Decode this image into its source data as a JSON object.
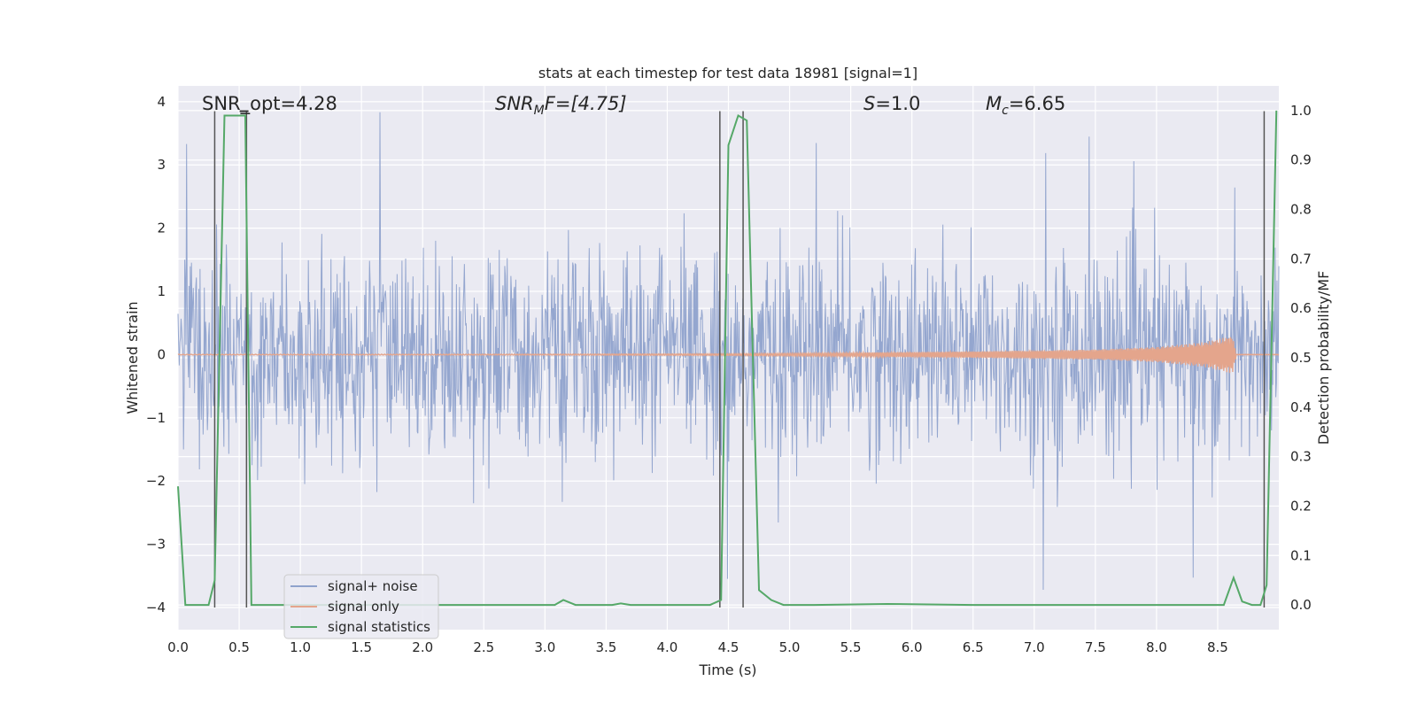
{
  "chart_data": {
    "type": "line",
    "title": "stats at each timestep for test data 18981 [signal=1]",
    "xlabel": "Time (s)",
    "ylabel_left": "Whitened strain",
    "ylabel_right": "Detection probability/MF",
    "xlim": [
      0.0,
      9.0
    ],
    "ylim_left": [
      -4.35,
      4.25
    ],
    "ylim_right": [
      -0.05,
      1.05
    ],
    "x_ticks": [
      "0.0",
      "0.5",
      "1.0",
      "1.5",
      "2.0",
      "2.5",
      "3.0",
      "3.5",
      "4.0",
      "4.5",
      "5.0",
      "5.5",
      "6.0",
      "6.5",
      "7.0",
      "7.5",
      "8.0",
      "8.5"
    ],
    "y_ticks_left": [
      "−4",
      "−3",
      "−2",
      "−1",
      "0",
      "1",
      "2",
      "3",
      "4"
    ],
    "y_ticks_right": [
      "0.0",
      "0.1",
      "0.2",
      "0.3",
      "0.4",
      "0.5",
      "0.6",
      "0.7",
      "0.8",
      "0.9",
      "1.0"
    ],
    "grid": true,
    "legend_position": "lower-left",
    "annotations": {
      "snr_opt": "SNR_opt=4.28",
      "snr_mf_label": "SNR",
      "snr_mf_sub": "M",
      "snr_mf_tail": "F=[4.75]",
      "s_label": "S",
      "s_value": "=1.0",
      "mc_label": "M",
      "mc_sub": "c",
      "mc_value": "=6.65"
    },
    "series": [
      {
        "name": "signal+ noise",
        "color": "#8fa2cc",
        "description_stats": {
          "typical_range": [
            -1.7,
            1.9
          ],
          "peaks_max": 3.9,
          "peaks_min": -4.0
        }
      },
      {
        "name": "signal only",
        "color": "#e4a58c",
        "envelope": {
          "t": [
            0.0,
            3.0,
            4.5,
            5.5,
            6.5,
            7.5,
            8.0,
            8.4,
            8.62,
            8.65
          ],
          "amp": [
            0.005,
            0.008,
            0.015,
            0.03,
            0.05,
            0.08,
            0.12,
            0.2,
            0.3,
            0.05
          ]
        }
      },
      {
        "name": "signal statistics",
        "color": "#55a868",
        "axis": "right",
        "x": [
          0.0,
          0.06,
          0.15,
          0.25,
          0.3,
          0.38,
          0.5,
          0.55,
          0.6,
          0.63,
          0.8,
          1.5,
          2.5,
          3.0,
          3.08,
          3.15,
          3.25,
          3.5,
          3.55,
          3.62,
          3.7,
          4.0,
          4.35,
          4.44,
          4.5,
          4.58,
          4.65,
          4.7,
          4.75,
          4.85,
          4.95,
          5.2,
          5.8,
          6.5,
          7.5,
          8.0,
          8.55,
          8.63,
          8.7,
          8.78,
          8.85,
          8.9,
          8.98
        ],
        "y": [
          0.24,
          0.0,
          0.0,
          0.0,
          0.05,
          0.99,
          0.99,
          0.99,
          0.0,
          0.0,
          0.0,
          0.0,
          0.0,
          0.0,
          0.0,
          0.01,
          0.0,
          0.0,
          0.0,
          0.003,
          0.0,
          0.0,
          0.0,
          0.01,
          0.93,
          0.99,
          0.98,
          0.5,
          0.03,
          0.01,
          0.0,
          0.0,
          0.002,
          0.0,
          0.0,
          0.0,
          0.0,
          0.055,
          0.007,
          0.0,
          0.0,
          0.04,
          1.0
        ]
      }
    ],
    "detection_markers_x": [
      0.3,
      0.56,
      4.43,
      4.62,
      8.88
    ],
    "snr_opt_marker": {
      "x": 0.54,
      "y": 3.85
    }
  }
}
